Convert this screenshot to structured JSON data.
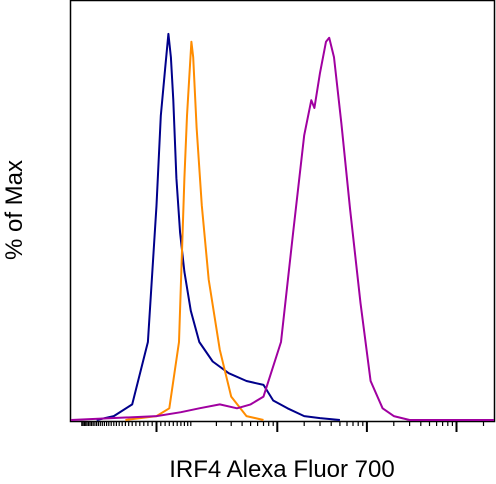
{
  "chart_data": {
    "type": "line",
    "title": "",
    "xlabel": "IRF4 Alexa Fluor 700",
    "ylabel": "% of Max",
    "x_scale": "biexponential",
    "ylim": [
      0,
      100
    ],
    "grid": false,
    "legend": "none",
    "series": [
      {
        "color": "#00008b",
        "points": [
          [
            -200,
            0
          ],
          [
            -120,
            1
          ],
          [
            -60,
            4
          ],
          [
            -20,
            20
          ],
          [
            0,
            55
          ],
          [
            10,
            78
          ],
          [
            20,
            90
          ],
          [
            28,
            99
          ],
          [
            34,
            93
          ],
          [
            40,
            82
          ],
          [
            48,
            62
          ],
          [
            58,
            48
          ],
          [
            70,
            38
          ],
          [
            90,
            28
          ],
          [
            120,
            20
          ],
          [
            180,
            15
          ],
          [
            280,
            12
          ],
          [
            450,
            10
          ],
          [
            700,
            9
          ],
          [
            900,
            5
          ],
          [
            1300,
            3
          ],
          [
            2000,
            1
          ],
          [
            3000,
            0.5
          ],
          [
            5000,
            0
          ]
        ]
      },
      {
        "color": "#ff8c00",
        "points": [
          [
            -80,
            0
          ],
          [
            0,
            1
          ],
          [
            30,
            3
          ],
          [
            55,
            20
          ],
          [
            70,
            62
          ],
          [
            78,
            78
          ],
          [
            85,
            88
          ],
          [
            92,
            97
          ],
          [
            98,
            93
          ],
          [
            110,
            75
          ],
          [
            130,
            55
          ],
          [
            160,
            36
          ],
          [
            220,
            18
          ],
          [
            300,
            6
          ],
          [
            450,
            1
          ],
          [
            700,
            0
          ]
        ]
      },
      {
        "color": "#a000a0",
        "points": [
          [
            -400,
            0
          ],
          [
            0,
            1
          ],
          [
            60,
            2
          ],
          [
            120,
            3
          ],
          [
            220,
            4
          ],
          [
            350,
            3
          ],
          [
            500,
            4
          ],
          [
            700,
            6
          ],
          [
            1100,
            20
          ],
          [
            1500,
            48
          ],
          [
            2000,
            73
          ],
          [
            2400,
            82
          ],
          [
            2600,
            80
          ],
          [
            3000,
            89
          ],
          [
            3500,
            97
          ],
          [
            3800,
            98
          ],
          [
            4300,
            93
          ],
          [
            5200,
            76
          ],
          [
            6500,
            54
          ],
          [
            8500,
            30
          ],
          [
            11000,
            10
          ],
          [
            15000,
            3
          ],
          [
            20000,
            1
          ],
          [
            30000,
            0
          ],
          [
            100000,
            0
          ],
          [
            262144,
            0
          ]
        ]
      }
    ]
  }
}
